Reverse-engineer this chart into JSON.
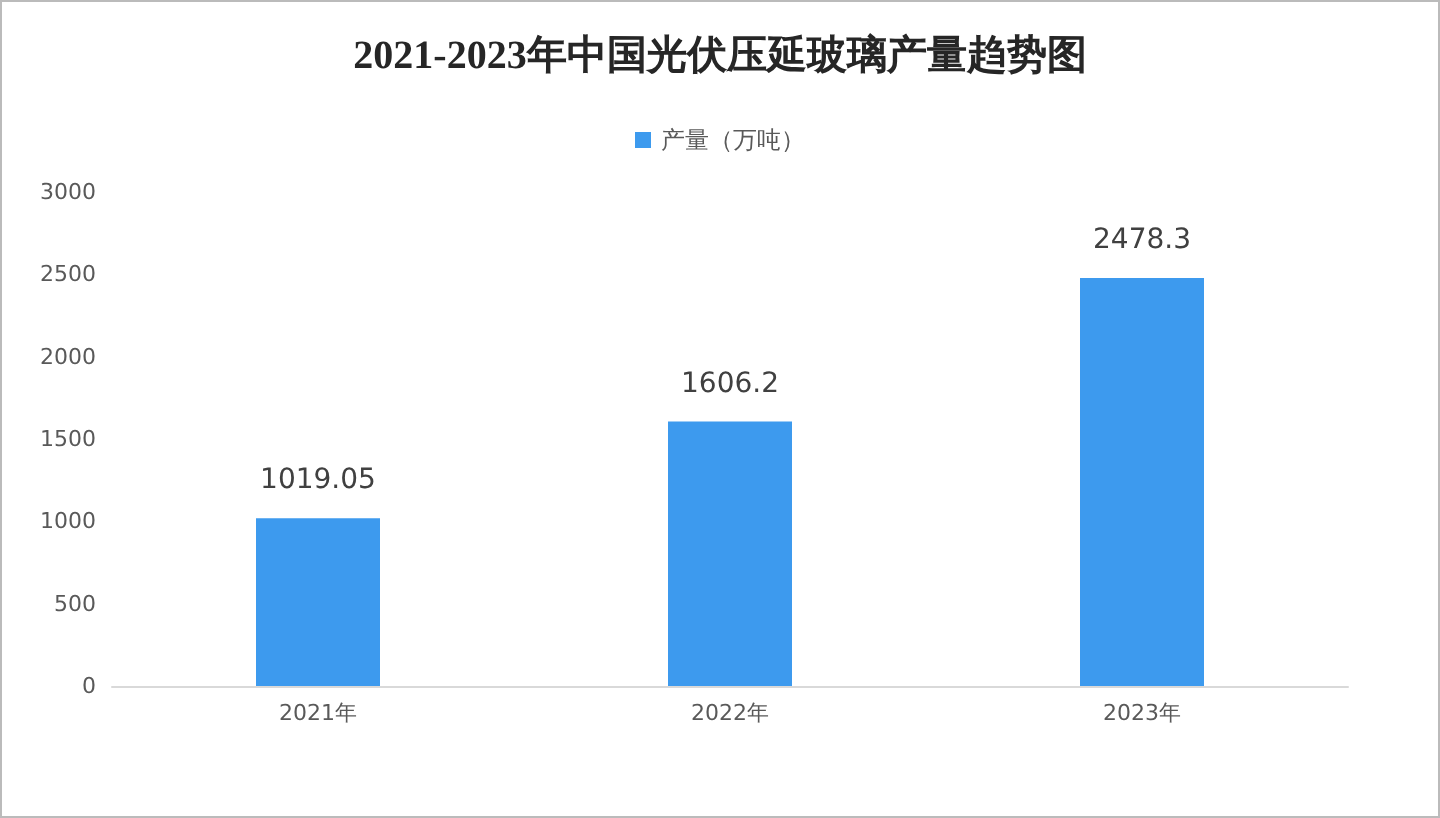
{
  "chart_data": {
    "type": "bar",
    "title": "2021-2023年中国光伏压延玻璃产量趋势图",
    "categories": [
      "2021年",
      "2022年",
      "2023年"
    ],
    "series": [
      {
        "name": "产量（万吨）",
        "color": "#3d9aee",
        "values": [
          1019.05,
          1606.2,
          2478.3
        ]
      }
    ],
    "value_labels": [
      "1019.05",
      "1606.2",
      "2478.3"
    ],
    "ylim": [
      0,
      3000
    ],
    "yticks": [
      0,
      500,
      1000,
      1500,
      2000,
      2500,
      3000
    ],
    "grid": false,
    "legend": "top"
  }
}
